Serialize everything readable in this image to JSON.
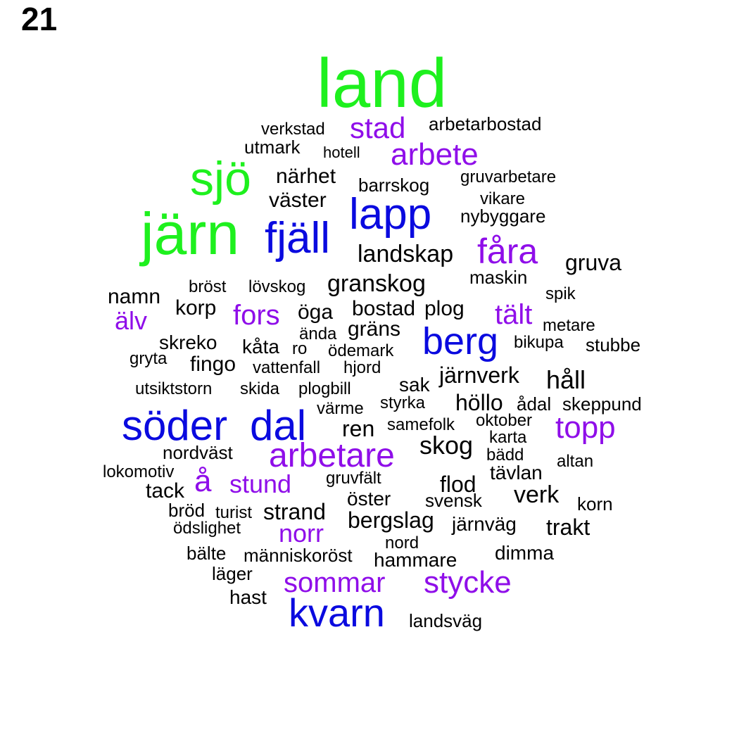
{
  "panel_label": "21",
  "colors": {
    "green": "#1ef01e",
    "blue": "#0a0adf",
    "purple": "#8f0ee9",
    "black": "#000000"
  },
  "words": [
    {
      "text": "land",
      "color": "green"
    },
    {
      "text": "järn",
      "color": "green"
    },
    {
      "text": "sjö",
      "color": "green"
    },
    {
      "text": "söder",
      "color": "blue"
    },
    {
      "text": "dal",
      "color": "blue"
    },
    {
      "text": "lapp",
      "color": "blue"
    },
    {
      "text": "fjäll",
      "color": "blue"
    },
    {
      "text": "berg",
      "color": "blue"
    },
    {
      "text": "kvarn",
      "color": "blue"
    },
    {
      "text": "fåra",
      "color": "purple"
    },
    {
      "text": "arbetare",
      "color": "purple"
    },
    {
      "text": "topp",
      "color": "purple"
    },
    {
      "text": "arbete",
      "color": "purple"
    },
    {
      "text": "stycke",
      "color": "purple"
    },
    {
      "text": "stad",
      "color": "purple"
    },
    {
      "text": "sommar",
      "color": "purple"
    },
    {
      "text": "fors",
      "color": "purple"
    },
    {
      "text": "tält",
      "color": "purple"
    },
    {
      "text": "å",
      "color": "purple"
    },
    {
      "text": "stund",
      "color": "purple"
    },
    {
      "text": "norr",
      "color": "purple"
    },
    {
      "text": "älv",
      "color": "purple"
    },
    {
      "text": "landskap",
      "color": "black"
    },
    {
      "text": "granskog",
      "color": "black"
    },
    {
      "text": "gruva",
      "color": "black"
    },
    {
      "text": "bostad",
      "color": "black"
    },
    {
      "text": "plog",
      "color": "black"
    },
    {
      "text": "namn",
      "color": "black"
    },
    {
      "text": "korp",
      "color": "black"
    },
    {
      "text": "öga",
      "color": "black"
    },
    {
      "text": "gräns",
      "color": "black"
    },
    {
      "text": "närhet",
      "color": "black"
    },
    {
      "text": "väster",
      "color": "black"
    },
    {
      "text": "järnverk",
      "color": "black"
    },
    {
      "text": "håll",
      "color": "black"
    },
    {
      "text": "skog",
      "color": "black"
    },
    {
      "text": "höllo",
      "color": "black"
    },
    {
      "text": "ren",
      "color": "black"
    },
    {
      "text": "flod",
      "color": "black"
    },
    {
      "text": "verk",
      "color": "black"
    },
    {
      "text": "strand",
      "color": "black"
    },
    {
      "text": "bergslag",
      "color": "black"
    },
    {
      "text": "trakt",
      "color": "black"
    },
    {
      "text": "fingo",
      "color": "black"
    },
    {
      "text": "skreko",
      "color": "black"
    },
    {
      "text": "kåta",
      "color": "black"
    },
    {
      "text": "tack",
      "color": "black"
    },
    {
      "text": "tävlan",
      "color": "black"
    },
    {
      "text": "hast",
      "color": "black"
    },
    {
      "text": "sak",
      "color": "black"
    },
    {
      "text": "utmark",
      "color": "black"
    },
    {
      "text": "barrskog",
      "color": "black"
    },
    {
      "text": "arbetarbostad",
      "color": "black"
    },
    {
      "text": "verkstad",
      "color": "black"
    },
    {
      "text": "hotell",
      "color": "black"
    },
    {
      "text": "gruvarbetare",
      "color": "black"
    },
    {
      "text": "vikare",
      "color": "black"
    },
    {
      "text": "nybyggare",
      "color": "black"
    },
    {
      "text": "maskin",
      "color": "black"
    },
    {
      "text": "bröst",
      "color": "black"
    },
    {
      "text": "lövskog",
      "color": "black"
    },
    {
      "text": "spik",
      "color": "black"
    },
    {
      "text": "metare",
      "color": "black"
    },
    {
      "text": "ända",
      "color": "black"
    },
    {
      "text": "bikupa",
      "color": "black"
    },
    {
      "text": "stubbe",
      "color": "black"
    },
    {
      "text": "ro",
      "color": "black"
    },
    {
      "text": "ödemark",
      "color": "black"
    },
    {
      "text": "gryta",
      "color": "black"
    },
    {
      "text": "vattenfall",
      "color": "black"
    },
    {
      "text": "hjord",
      "color": "black"
    },
    {
      "text": "utsiktstorn",
      "color": "black"
    },
    {
      "text": "skida",
      "color": "black"
    },
    {
      "text": "plogbill",
      "color": "black"
    },
    {
      "text": "värme",
      "color": "black"
    },
    {
      "text": "styrka",
      "color": "black"
    },
    {
      "text": "ådal",
      "color": "black"
    },
    {
      "text": "skeppund",
      "color": "black"
    },
    {
      "text": "samefolk",
      "color": "black"
    },
    {
      "text": "oktober",
      "color": "black"
    },
    {
      "text": "karta",
      "color": "black"
    },
    {
      "text": "nordväst",
      "color": "black"
    },
    {
      "text": "bädd",
      "color": "black"
    },
    {
      "text": "altan",
      "color": "black"
    },
    {
      "text": "lokomotiv",
      "color": "black"
    },
    {
      "text": "gruvfält",
      "color": "black"
    },
    {
      "text": "öster",
      "color": "black"
    },
    {
      "text": "svensk",
      "color": "black"
    },
    {
      "text": "korn",
      "color": "black"
    },
    {
      "text": "bröd",
      "color": "black"
    },
    {
      "text": "turist",
      "color": "black"
    },
    {
      "text": "ödslighet",
      "color": "black"
    },
    {
      "text": "järnväg",
      "color": "black"
    },
    {
      "text": "nord",
      "color": "black"
    },
    {
      "text": "bälte",
      "color": "black"
    },
    {
      "text": "människoröst",
      "color": "black"
    },
    {
      "text": "hammare",
      "color": "black"
    },
    {
      "text": "dimma",
      "color": "black"
    },
    {
      "text": "läger",
      "color": "black"
    },
    {
      "text": "landsväg",
      "color": "black"
    }
  ]
}
